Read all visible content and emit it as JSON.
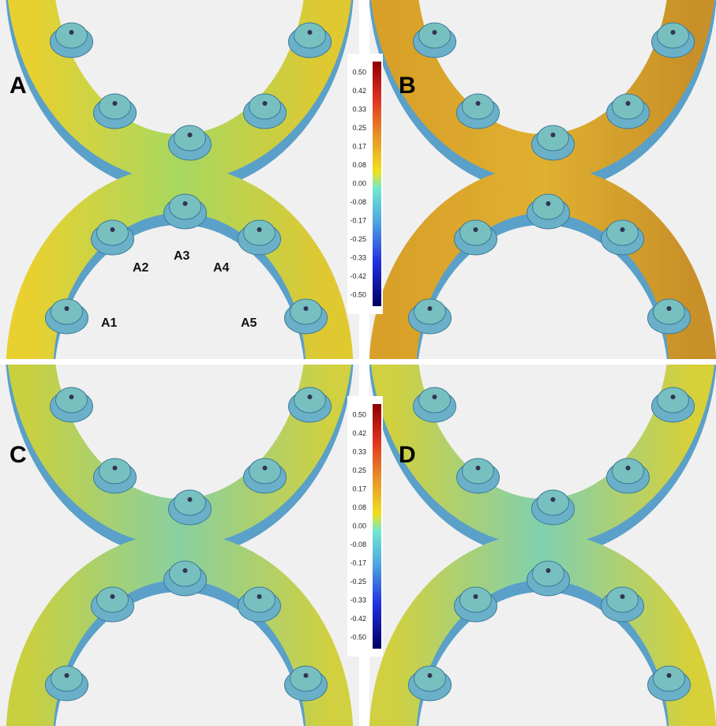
{
  "panels": [
    {
      "label": "A"
    },
    {
      "label": "B"
    },
    {
      "label": "C"
    },
    {
      "label": "D"
    }
  ],
  "points": [
    "A1",
    "A2",
    "A3",
    "A4",
    "A5"
  ],
  "color_scales": [
    {
      "ticks": [
        "0.50",
        "0.42",
        "0.33",
        "0.25",
        "0.17",
        "0.08",
        "0.00",
        "-0.08",
        "-0.17",
        "-0.25",
        "-0.33",
        "-0.42",
        "-0.50"
      ]
    },
    {
      "ticks": [
        "0.50",
        "0.42",
        "0.33",
        "0.25",
        "0.17",
        "0.08",
        "0.00",
        "-0.08",
        "-0.17",
        "-0.25",
        "-0.33",
        "-0.42",
        "-0.50"
      ]
    }
  ]
}
